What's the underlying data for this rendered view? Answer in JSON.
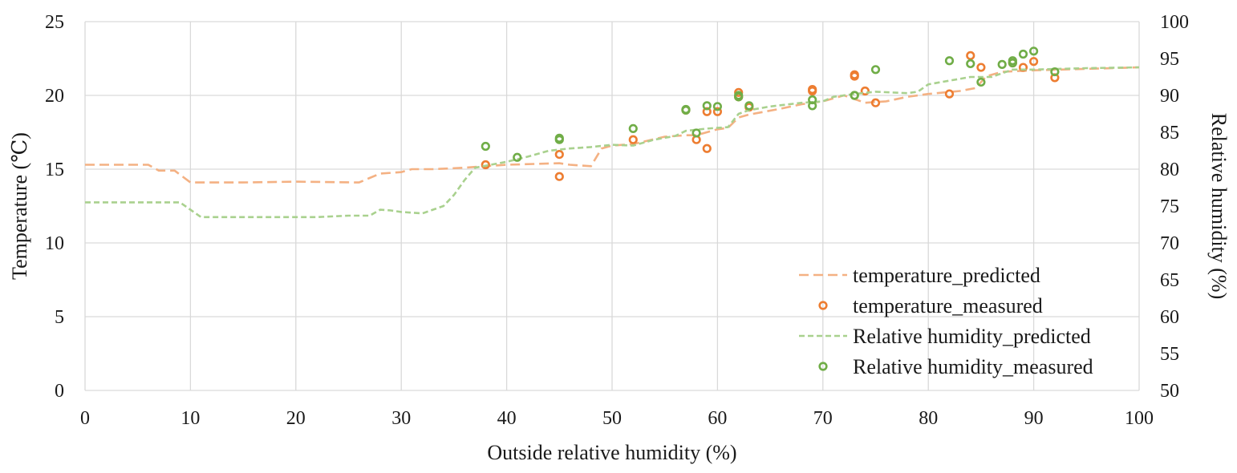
{
  "chart_data": {
    "type": "line",
    "xlabel": "Outside relative humidity (%)",
    "ylabel": "Temperature (℃)",
    "y2label": "Relative humidity (%)",
    "xlim": [
      0,
      100
    ],
    "ylim": [
      0,
      25
    ],
    "y2lim": [
      50,
      100
    ],
    "x_ticks": [
      0,
      10,
      20,
      30,
      40,
      50,
      60,
      70,
      80,
      90,
      100
    ],
    "y_ticks": [
      0,
      5,
      10,
      15,
      20,
      25
    ],
    "y2_ticks": [
      50,
      55,
      60,
      65,
      70,
      75,
      80,
      85,
      90,
      95,
      100
    ],
    "grid": true,
    "legend_position": "bottom-right",
    "series": [
      {
        "name": "temperature_predicted",
        "kind": "dashed-line",
        "axis": "left",
        "color": "#F4B183",
        "x": [
          0,
          6,
          7,
          8.5,
          10,
          15,
          20,
          26,
          27,
          28,
          30,
          31,
          33,
          36,
          38,
          40,
          45,
          46,
          48,
          49,
          50,
          52,
          55,
          57,
          58,
          60,
          61,
          62,
          63,
          66,
          68,
          70,
          72,
          74,
          76,
          78,
          80,
          83,
          84.5,
          85.5,
          87,
          90,
          95,
          100
        ],
        "y": [
          15.3,
          15.3,
          14.9,
          14.9,
          14.1,
          14.1,
          14.15,
          14.1,
          14.4,
          14.7,
          14.8,
          15.0,
          15.0,
          15.1,
          15.2,
          15.3,
          15.4,
          15.3,
          15.2,
          16.4,
          16.6,
          16.7,
          17.2,
          17.3,
          17.3,
          17.7,
          17.8,
          18.5,
          18.7,
          19.1,
          19.4,
          19.6,
          20.0,
          19.5,
          19.6,
          19.9,
          20.1,
          20.3,
          20.5,
          21.3,
          21.6,
          21.7,
          21.8,
          21.9
        ]
      },
      {
        "name": "temperature_measured",
        "kind": "markers",
        "axis": "left",
        "color": "#ED7D31",
        "x": [
          38,
          45,
          45,
          52,
          57,
          58,
          59,
          59,
          60,
          62,
          62,
          63,
          69,
          69,
          73,
          73,
          74,
          75,
          82,
          84,
          85,
          88,
          89,
          90,
          92
        ],
        "y": [
          15.3,
          16.0,
          14.5,
          17.0,
          19.0,
          17.0,
          18.9,
          16.4,
          18.9,
          20.2,
          19.9,
          19.2,
          20.4,
          20.3,
          21.3,
          21.4,
          20.3,
          19.5,
          20.1,
          22.7,
          21.9,
          22.2,
          21.9,
          22.3,
          21.2
        ]
      },
      {
        "name": "Relative humidity_predicted",
        "kind": "dashed-line",
        "axis": "right",
        "color": "#A9D18E",
        "x": [
          0,
          9,
          10,
          11,
          15,
          20,
          22,
          25,
          27,
          28,
          29,
          30,
          32,
          34,
          35,
          36,
          37,
          40,
          42,
          44,
          46,
          48,
          50,
          52,
          54,
          56,
          57,
          59,
          61,
          62,
          63,
          65,
          68,
          70,
          71,
          72,
          73,
          75,
          78,
          79,
          80,
          82,
          84,
          86,
          88,
          90,
          95,
          100
        ],
        "y": [
          75.5,
          75.5,
          74.5,
          73.5,
          73.5,
          73.5,
          73.5,
          73.7,
          73.7,
          74.5,
          74.4,
          74.2,
          74.0,
          75.0,
          76.5,
          78.5,
          80.2,
          81.0,
          81.7,
          82.5,
          82.8,
          83.0,
          83.3,
          83.2,
          84.0,
          84.5,
          85.2,
          85.5,
          85.7,
          87.5,
          88.0,
          88.5,
          89.0,
          89.2,
          89.8,
          90.0,
          90.2,
          90.5,
          90.3,
          90.5,
          91.5,
          92.0,
          92.5,
          92.5,
          93.5,
          93.5,
          93.7,
          93.8
        ]
      },
      {
        "name": "Relative humidity_measured",
        "kind": "markers",
        "axis": "right",
        "color": "#70AD47",
        "x": [
          38,
          41,
          45,
          45,
          52,
          57,
          57,
          58,
          59,
          60,
          62,
          62,
          63,
          69,
          69,
          73,
          73,
          75,
          82,
          84,
          85,
          87,
          88,
          88,
          89,
          90,
          92
        ],
        "y": [
          83.1,
          81.6,
          84.2,
          84.0,
          85.5,
          88.0,
          88.1,
          84.9,
          88.6,
          88.5,
          90.0,
          89.8,
          88.6,
          89.4,
          88.6,
          90.0,
          90.0,
          93.5,
          94.7,
          94.3,
          91.8,
          94.2,
          94.4,
          94.7,
          95.6,
          96.0,
          93.2
        ]
      }
    ]
  }
}
